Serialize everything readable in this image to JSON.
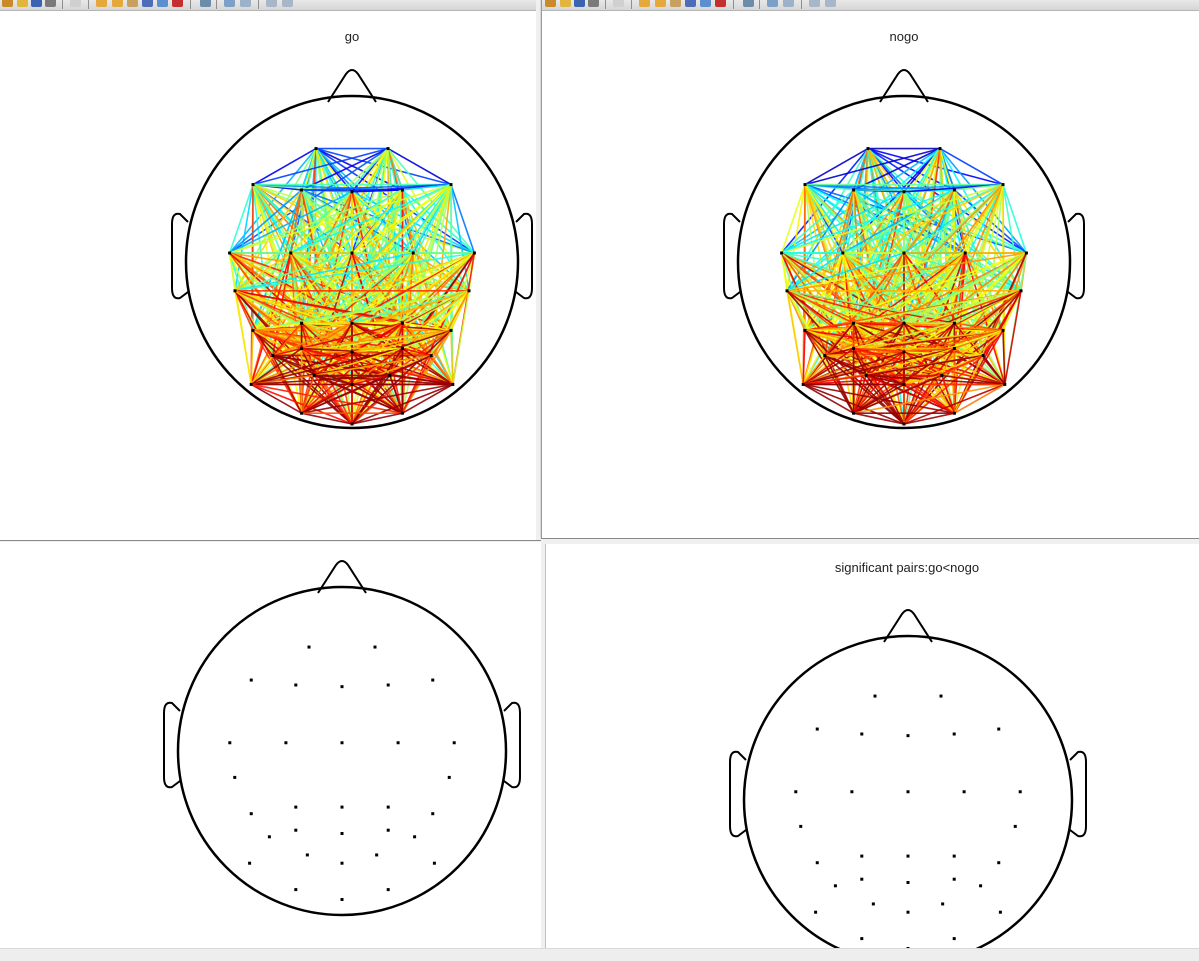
{
  "panels": {
    "top_left": {
      "title": "go"
    },
    "top_right": {
      "title": "nogo"
    },
    "bottom_left": {
      "title": ""
    },
    "bottom_right": {
      "title": "significant pairs:go<nogo"
    }
  },
  "toolbar": {
    "icons": [
      "new-figure-icon",
      "open-file-icon",
      "save-icon",
      "print-icon",
      "edit-plot-icon",
      "zoom-in-icon",
      "zoom-out-icon",
      "pan-icon",
      "rotate-icon",
      "data-cursor-icon",
      "brush-icon",
      "link-icon",
      "colorbar-icon",
      "legend-icon",
      "hide-tools-icon",
      "show-tools-icon"
    ]
  },
  "colors": {
    "head_outline": "#000000",
    "electrode": "#000000",
    "colormap": "jet"
  }
}
